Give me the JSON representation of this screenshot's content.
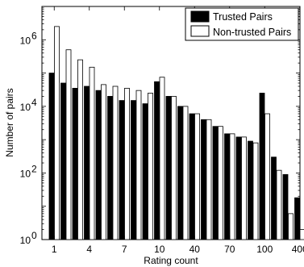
{
  "chart_data": {
    "type": "bar",
    "title": "",
    "xlabel": "Rating count",
    "ylabel": "Number of pairs",
    "y_scale": "log",
    "ylim": [
      1,
      10000000
    ],
    "y_ticks": [
      {
        "value": 1,
        "mantissa": "10",
        "exponent": "0"
      },
      {
        "value": 100,
        "mantissa": "10",
        "exponent": "2"
      },
      {
        "value": 10000,
        "mantissa": "10",
        "exponent": "4"
      },
      {
        "value": 1000000,
        "mantissa": "10",
        "exponent": "6"
      }
    ],
    "categories": [
      "1",
      "2",
      "3",
      "4",
      "5",
      "6",
      "7",
      "8",
      "9",
      "10",
      "20",
      "30",
      "40",
      "50",
      "60",
      "70",
      "80",
      "90",
      "100",
      "200",
      "300",
      "400"
    ],
    "x_tick_labels": [
      "1",
      "4",
      "7",
      "10",
      "40",
      "70",
      "100",
      "400"
    ],
    "x_tick_categories": [
      "1",
      "4",
      "7",
      "10",
      "40",
      "70",
      "100",
      "400"
    ],
    "legend_position": "top-right",
    "series": [
      {
        "name": "Trusted Pairs",
        "color": "#000000",
        "values": [
          100000,
          50000,
          35000,
          40000,
          30000,
          20000,
          15000,
          15000,
          12000,
          55000,
          20000,
          10000,
          6000,
          4000,
          2500,
          1500,
          1200,
          900,
          25000,
          300,
          90,
          18
        ]
      },
      {
        "name": "Non-trusted Pairs",
        "color": "#ffffff",
        "values": [
          2500000,
          500000,
          250000,
          150000,
          45000,
          40000,
          35000,
          30000,
          25000,
          75000,
          20000,
          10000,
          6000,
          4000,
          2500,
          1500,
          1200,
          800,
          6000,
          120,
          6,
          2
        ]
      }
    ]
  }
}
